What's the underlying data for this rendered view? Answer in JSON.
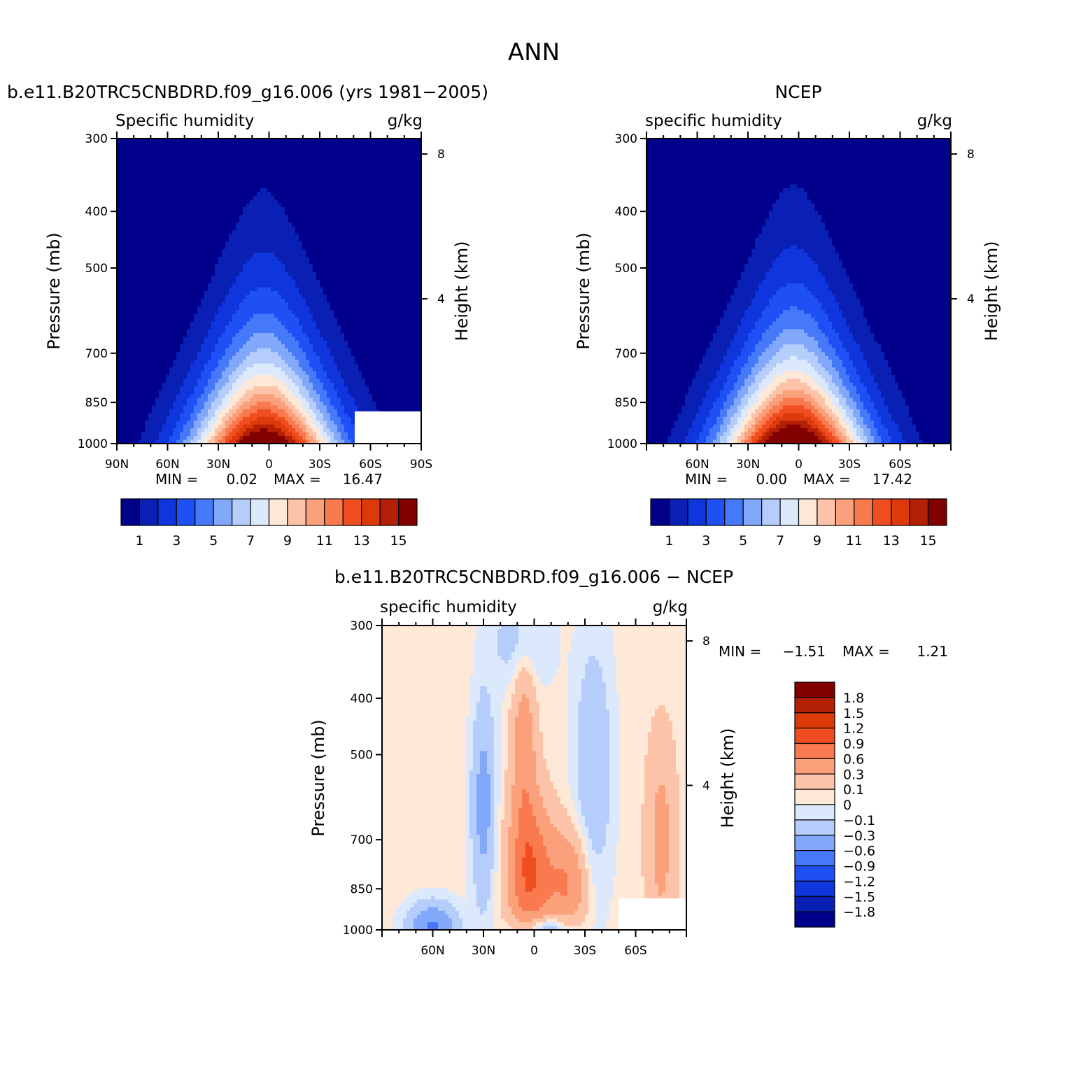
{
  "figure": {
    "title": "ANN"
  },
  "colors": {
    "qscale": [
      "#00008b",
      "#0a20b4",
      "#0e36dc",
      "#1e50f5",
      "#4678fa",
      "#82a8fa",
      "#b4cdfa",
      "#dce9fc",
      "#fee8d8",
      "#fcc3a8",
      "#faa07a",
      "#f87a4e",
      "#f04e20",
      "#dc3a0a",
      "#b42005",
      "#820000"
    ],
    "dscale": [
      "#00008b",
      "#0a20b4",
      "#0e36dc",
      "#1e50f5",
      "#4678fa",
      "#82a8fa",
      "#b4cdfa",
      "#dce9fc",
      "#fee8d8",
      "#fcc3a8",
      "#faa07a",
      "#f87a4e",
      "#f04e20",
      "#dc3a0a",
      "#b42005",
      "#820000"
    ]
  },
  "chart_data": [
    {
      "type": "contour",
      "title": "b.e11.B20TRC5CNBDRD.f09_g16.006 (yrs 1981-2005)",
      "left_label": "Specific humidity",
      "right_label": "g/kg",
      "xlabel": "",
      "ylabel": "Pressure (mb)",
      "y2label": "Height (km)",
      "x_ticks": [
        "90N",
        "60N",
        "30N",
        "0",
        "30S",
        "60S",
        "90S"
      ],
      "y_ticks": [
        "300",
        "400",
        "500",
        "700",
        "850",
        "1000"
      ],
      "y2_ticks": [
        "8",
        "4"
      ],
      "stats": {
        "min_label": "MIN =",
        "min": "0.02",
        "max_label": "MAX =",
        "max": "16.47"
      },
      "peak_value": 16.47,
      "colorbar_labels": [
        "1",
        "3",
        "5",
        "7",
        "9",
        "11",
        "13",
        "15"
      ]
    },
    {
      "type": "contour",
      "title": "NCEP",
      "left_label": "specific humidity",
      "right_label": "g/kg",
      "xlabel": "",
      "ylabel": "Pressure (mb)",
      "y2label": "Height (km)",
      "x_ticks": [
        "60N",
        "30N",
        "0",
        "30S",
        "60S"
      ],
      "y_ticks": [
        "300",
        "400",
        "500",
        "700",
        "850",
        "1000"
      ],
      "y2_ticks": [
        "8",
        "4"
      ],
      "stats": {
        "min_label": "MIN =",
        "min": "0.00",
        "max_label": "MAX =",
        "max": "17.42"
      },
      "peak_value": 17.42,
      "colorbar_labels": [
        "1",
        "3",
        "5",
        "7",
        "9",
        "11",
        "13",
        "15"
      ]
    },
    {
      "type": "contour",
      "title": "b.e11.B20TRC5CNBDRD.f09_g16.006 - NCEP",
      "left_label": "specific humidity",
      "right_label": "g/kg",
      "xlabel": "",
      "ylabel": "Pressure (mb)",
      "y2label": "Height (km)",
      "x_ticks": [
        "60N",
        "30N",
        "0",
        "30S",
        "60S"
      ],
      "y_ticks": [
        "300",
        "400",
        "500",
        "700",
        "850",
        "1000"
      ],
      "y2_ticks": [
        "8",
        "4"
      ],
      "stats": {
        "min_label": "MIN =",
        "min": "-1.51",
        "max_label": "MAX =",
        "max": "1.21"
      },
      "colorbar_labels": [
        "1.8",
        "1.5",
        "1.2",
        "0.9",
        "0.6",
        "0.3",
        "0.1",
        "0",
        "-0.1",
        "-0.3",
        "-0.6",
        "-0.9",
        "-1.2",
        "-1.5",
        "-1.8"
      ]
    }
  ]
}
